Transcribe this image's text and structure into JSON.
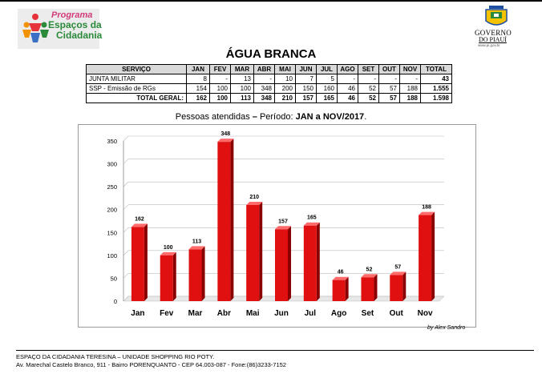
{
  "header": {
    "logo_left": {
      "line1": "Programa",
      "line2": "Espaços da",
      "line3": "Cidadania"
    },
    "logo_right": {
      "line1": "GOVERNO",
      "line2": "DO PIAUÍ",
      "site": "www.pi.gov.br"
    }
  },
  "title": "ÁGUA BRANCA",
  "table": {
    "headers": [
      "SERVIÇO",
      "JAN",
      "FEV",
      "MAR",
      "ABR",
      "MAI",
      "JUN",
      "JUL",
      "AGO",
      "SET",
      "OUT",
      "NOV",
      "TOTAL"
    ],
    "rows": [
      [
        "JUNTA MILITAR",
        "8",
        "-",
        "13",
        "-",
        "10",
        "7",
        "5",
        "-",
        "-",
        "-",
        "-",
        "43"
      ],
      [
        "SSP - Emissão de RGs",
        "154",
        "100",
        "100",
        "348",
        "200",
        "150",
        "160",
        "46",
        "52",
        "57",
        "188",
        "1.555"
      ]
    ],
    "total_row": [
      "TOTAL GERAL:",
      "162",
      "100",
      "113",
      "348",
      "210",
      "157",
      "165",
      "46",
      "52",
      "57",
      "188",
      "1.598"
    ]
  },
  "subtitle": {
    "prefix": "Pessoas atendidas",
    "dash": " – ",
    "mid": "Período: ",
    "bold": "JAN a NOV/2017",
    "suffix": "."
  },
  "chart_data": {
    "type": "bar",
    "categories": [
      "Jan",
      "Fev",
      "Mar",
      "Abr",
      "Mai",
      "Jun",
      "Jul",
      "Ago",
      "Set",
      "Out",
      "Nov"
    ],
    "values": [
      162,
      100,
      113,
      348,
      210,
      157,
      165,
      46,
      52,
      57,
      188
    ],
    "ylim": [
      0,
      350
    ],
    "yticks": [
      0,
      50,
      100,
      150,
      200,
      250,
      300,
      350
    ],
    "bar_color": "#e01010",
    "title": "",
    "xlabel": "",
    "ylabel": ""
  },
  "credit": "by Alex Sandro",
  "footer": {
    "line1": "ESPAÇO DA CIDADANIA TERESINA – UNIDADE SHOPPING RIO POTY.",
    "line2": "Av. Marechal Castelo Branco, 911 - Bairro PORENQUANTO - CEP 64.003-087 - Fone:(86)3233-7152"
  }
}
